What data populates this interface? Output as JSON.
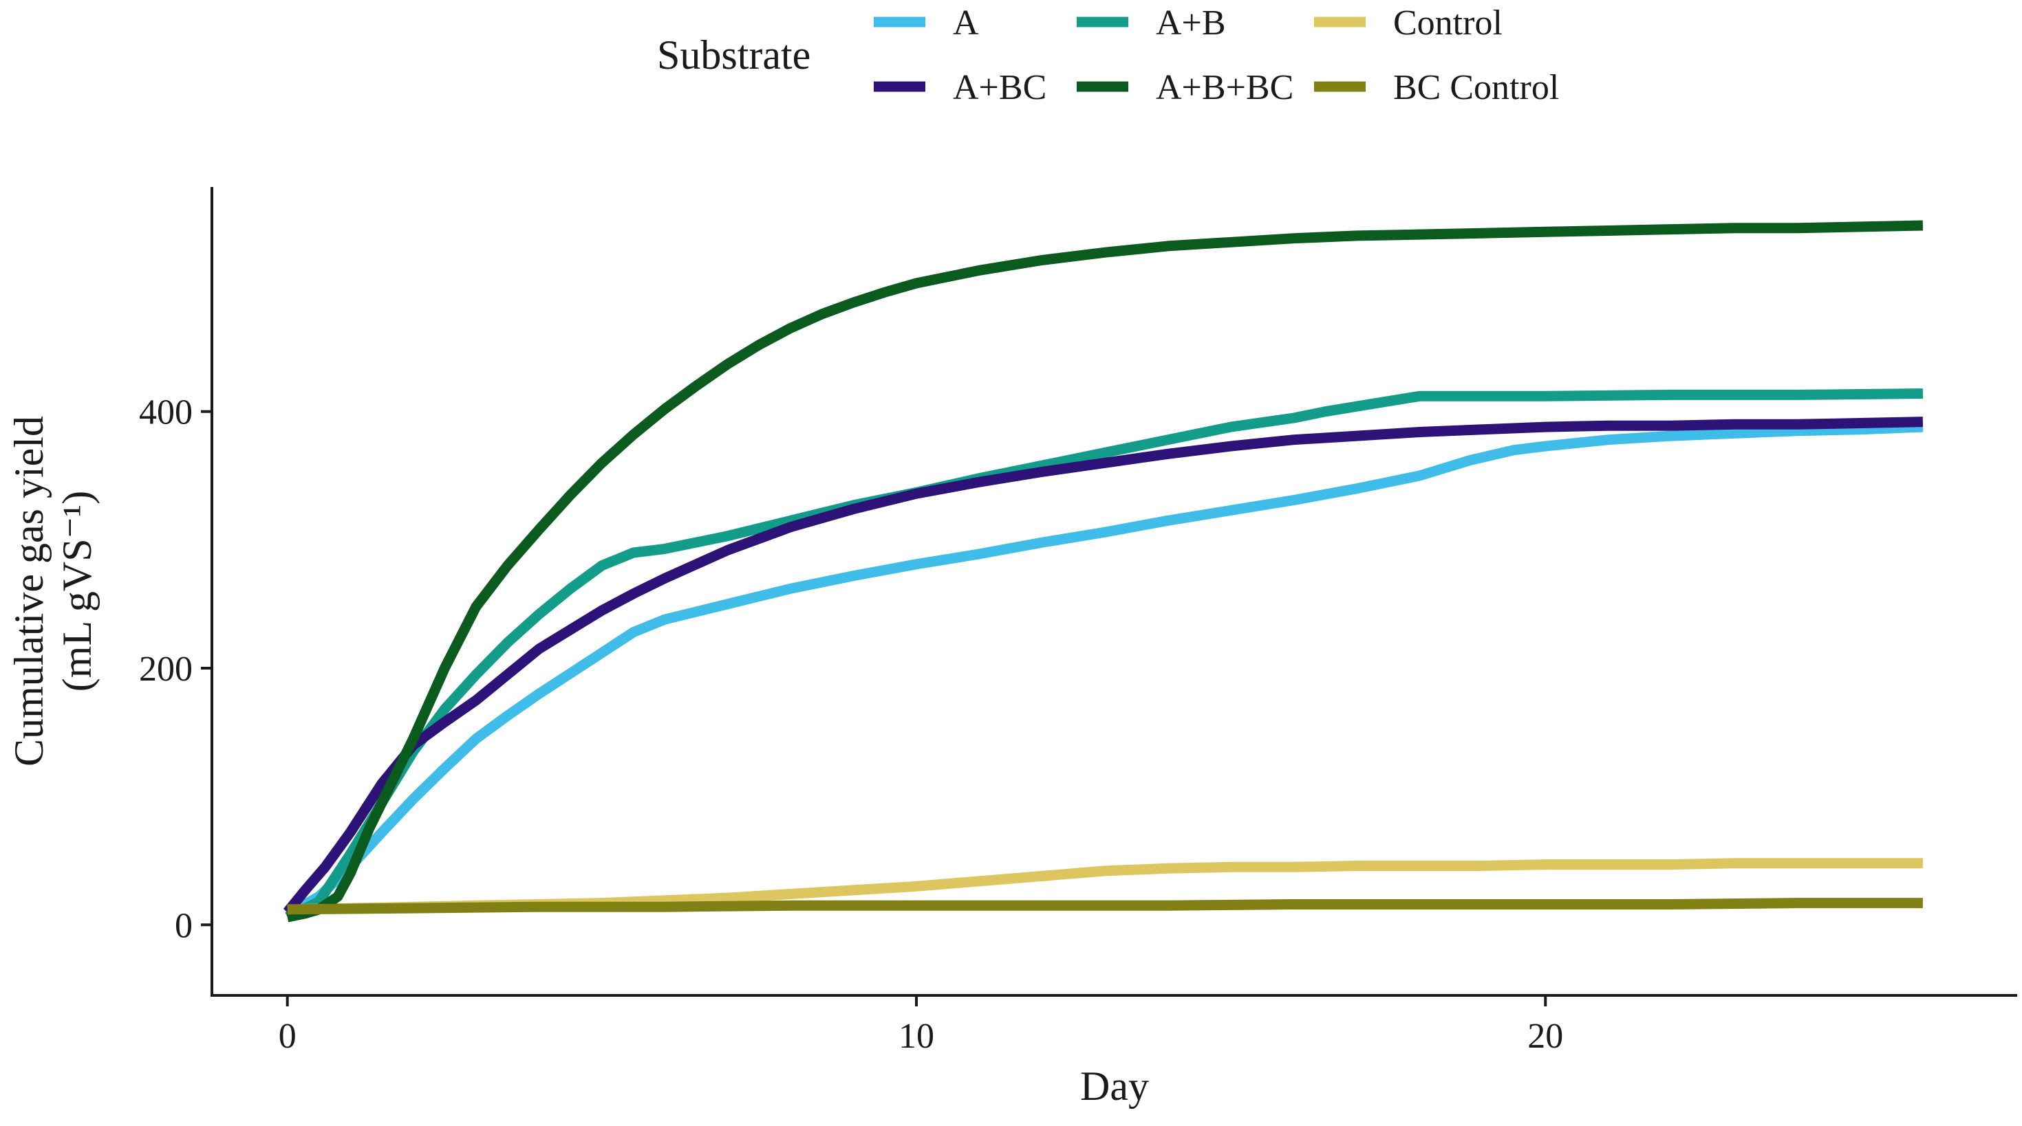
{
  "chart_data": {
    "type": "line",
    "title": "",
    "xlabel": "Day",
    "ylabel": [
      "Cumulative gas yield",
      "(mL gVS⁻¹)"
    ],
    "xlim": [
      -1.2,
      27.5
    ],
    "ylim": [
      -55,
      575
    ],
    "x_ticks": [
      0,
      10,
      20
    ],
    "y_ticks": [
      0,
      200,
      400
    ],
    "grid": false,
    "legend": {
      "title": "Substrate",
      "position": "top",
      "entries": [
        "A",
        "A+B",
        "Control",
        "A+BC",
        "A+B+BC",
        "BC Control"
      ]
    },
    "series": [
      {
        "name": "A",
        "color": "#3FBCE8",
        "x": [
          0,
          0.5,
          1,
          1.5,
          2,
          2.5,
          3,
          3.5,
          4,
          4.5,
          5,
          5.5,
          6,
          7,
          8,
          9,
          10,
          11,
          12,
          13,
          14,
          15,
          16,
          17,
          18,
          18.8,
          19.5,
          20,
          21,
          22,
          23,
          24,
          25,
          26
        ],
        "values": [
          8,
          22,
          45,
          72,
          98,
          122,
          145,
          163,
          180,
          196,
          212,
          228,
          238,
          250,
          262,
          272,
          281,
          289,
          298,
          306,
          315,
          323,
          331,
          340,
          350,
          362,
          370,
          373,
          378,
          381,
          383,
          385,
          386,
          388
        ]
      },
      {
        "name": "A+B",
        "color": "#139C8A",
        "x": [
          0,
          0.5,
          1,
          1.5,
          2,
          2.5,
          3,
          3.5,
          4,
          4.5,
          5,
          5.5,
          6,
          7,
          8,
          9,
          10,
          11,
          12,
          13,
          14,
          15,
          16,
          16.5,
          17,
          17.5,
          18,
          18.2,
          19,
          20,
          22,
          24,
          26
        ],
        "values": [
          6,
          18,
          55,
          95,
          135,
          168,
          195,
          220,
          242,
          262,
          280,
          290,
          293,
          303,
          315,
          327,
          337,
          348,
          358,
          368,
          378,
          388,
          395,
          400,
          404,
          408,
          412,
          412,
          412,
          412,
          413,
          413,
          414
        ]
      },
      {
        "name": "Control",
        "color": "#DDC65F",
        "x": [
          0,
          1,
          2,
          3,
          4,
          5,
          6,
          7,
          8,
          9,
          10,
          11,
          12,
          13,
          14,
          15,
          16,
          17,
          18,
          19,
          20,
          21,
          22,
          23,
          24,
          25,
          26
        ],
        "values": [
          12,
          13,
          14,
          15,
          16,
          17,
          19,
          21,
          24,
          27,
          30,
          34,
          38,
          42,
          44,
          45,
          45,
          46,
          46,
          46,
          47,
          47,
          47,
          48,
          48,
          48,
          48
        ]
      },
      {
        "name": "A+BC",
        "color": "#2D1277",
        "x": [
          0,
          0.3,
          0.6,
          1,
          1.5,
          2,
          2.5,
          3,
          3.5,
          4,
          4.5,
          5,
          5.5,
          6,
          7,
          8,
          9,
          10,
          11,
          12,
          13,
          14,
          15,
          16,
          17,
          18,
          19,
          20,
          21,
          22,
          23,
          24,
          25,
          26
        ],
        "values": [
          10,
          28,
          45,
          72,
          110,
          140,
          158,
          175,
          195,
          215,
          230,
          245,
          258,
          270,
          292,
          310,
          324,
          336,
          345,
          353,
          360,
          367,
          373,
          378,
          381,
          384,
          386,
          388,
          389,
          389,
          390,
          390,
          391,
          392
        ]
      },
      {
        "name": "A+B+BC",
        "color": "#0B5A1E",
        "x": [
          0,
          0.3,
          0.5,
          0.8,
          1,
          1.3,
          1.6,
          2,
          2.5,
          3,
          3.5,
          4,
          4.5,
          5,
          5.5,
          6,
          6.5,
          7,
          7.5,
          8,
          8.5,
          9,
          9.5,
          10,
          11,
          12,
          13,
          14,
          15,
          16,
          17,
          18,
          19,
          20,
          21,
          22,
          23,
          24,
          25,
          26
        ],
        "values": [
          6,
          9,
          12,
          22,
          40,
          75,
          105,
          145,
          200,
          248,
          280,
          308,
          335,
          360,
          382,
          402,
          420,
          437,
          452,
          465,
          476,
          485,
          493,
          500,
          510,
          518,
          524,
          529,
          532,
          535,
          537,
          538,
          539,
          540,
          541,
          542,
          543,
          543,
          544,
          545
        ]
      },
      {
        "name": "BC Control",
        "color": "#808014",
        "x": [
          0,
          2,
          4,
          6,
          8,
          10,
          12,
          14,
          16,
          18,
          20,
          22,
          24,
          26
        ],
        "values": [
          12,
          13,
          14,
          14,
          15,
          15,
          15,
          15,
          16,
          16,
          16,
          16,
          17,
          17
        ]
      }
    ]
  }
}
